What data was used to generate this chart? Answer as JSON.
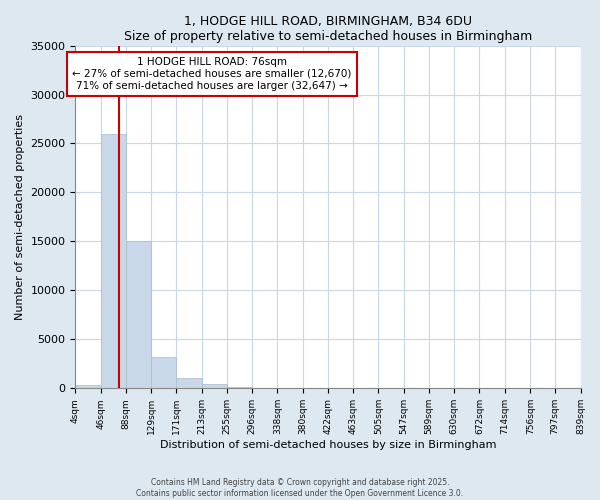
{
  "title": "1, HODGE HILL ROAD, BIRMINGHAM, B34 6DU",
  "subtitle": "Size of property relative to semi-detached houses in Birmingham",
  "xlabel": "Distribution of semi-detached houses by size in Birmingham",
  "ylabel": "Number of semi-detached properties",
  "bin_labels": [
    "4sqm",
    "46sqm",
    "88sqm",
    "129sqm",
    "171sqm",
    "213sqm",
    "255sqm",
    "296sqm",
    "338sqm",
    "380sqm",
    "422sqm",
    "463sqm",
    "505sqm",
    "547sqm",
    "589sqm",
    "630sqm",
    "672sqm",
    "714sqm",
    "756sqm",
    "797sqm",
    "839sqm"
  ],
  "bin_edges": [
    4,
    46,
    88,
    129,
    171,
    213,
    255,
    296,
    338,
    380,
    422,
    463,
    505,
    547,
    589,
    630,
    672,
    714,
    756,
    797,
    839
  ],
  "bar_heights": [
    300,
    26000,
    15000,
    3200,
    1100,
    400,
    150,
    0,
    0,
    0,
    0,
    0,
    0,
    0,
    0,
    0,
    0,
    0,
    0,
    0
  ],
  "bar_color": "#c8d8e8",
  "bar_edgecolor": "#aabbcc",
  "property_size": 76,
  "vline_color": "#cc0000",
  "ylim": [
    0,
    35000
  ],
  "yticks": [
    0,
    5000,
    10000,
    15000,
    20000,
    25000,
    30000,
    35000
  ],
  "annotation_text": "1 HODGE HILL ROAD: 76sqm\n← 27% of semi-detached houses are smaller (12,670)\n71% of semi-detached houses are larger (32,647) →",
  "annotation_box_color": "#ffffff",
  "annotation_box_edgecolor": "#cc0000",
  "footer_line1": "Contains HM Land Registry data © Crown copyright and database right 2025.",
  "footer_line2": "Contains public sector information licensed under the Open Government Licence 3.0.",
  "figure_background": "#dde8f0",
  "plot_background": "#ffffff",
  "grid_color": "#c8d8e8"
}
